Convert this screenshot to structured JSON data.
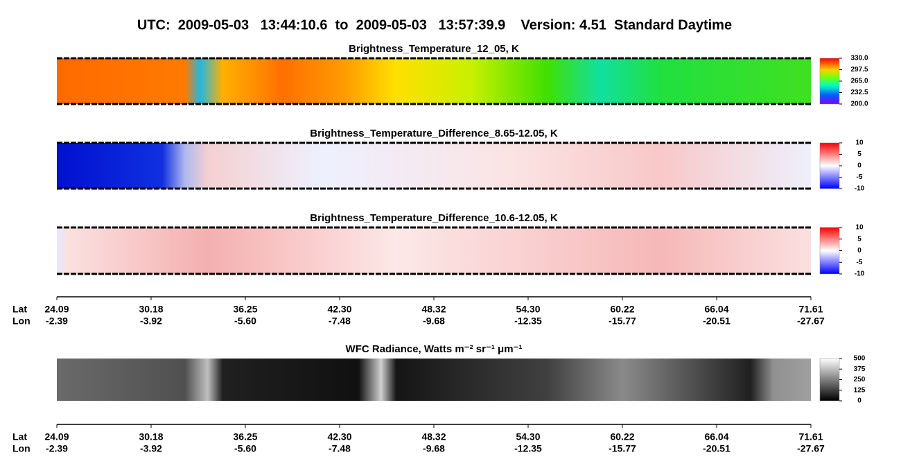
{
  "chart_data": [
    {
      "type": "image",
      "title": "UTC:  2009-05-03   13:44:10.6  to  2009-05-03   13:57:39.9    Version: 4.51  Standard Daytime"
    },
    {
      "type": "heatmap",
      "title": "Brightness_Temperature_12_05, K",
      "clim": [
        200,
        330
      ],
      "cticks": [
        {
          "value": 330,
          "label": "330.0"
        },
        {
          "value": 297.5,
          "label": "297.5"
        },
        {
          "value": 265,
          "label": "265.0"
        },
        {
          "value": 232.5,
          "label": "232.5"
        },
        {
          "value": 200,
          "label": "200.0"
        }
      ]
    },
    {
      "type": "heatmap",
      "title": "Brightness_Temperature_Difference_8.65-12.05, K",
      "clim": [
        -10,
        10
      ],
      "cticks": [
        10,
        5,
        0,
        -5,
        -10
      ]
    },
    {
      "type": "heatmap",
      "title": "Brightness_Temperature_Difference_10.6-12.05, K",
      "clim": [
        -10,
        10
      ],
      "cticks": [
        10,
        5,
        0,
        -5,
        -10
      ]
    },
    {
      "type": "heatmap",
      "title": "WFC Radiance, Watts m⁻² sr⁻¹ μm⁻¹",
      "clim": [
        0,
        500
      ],
      "cticks": [
        500,
        375,
        250,
        125,
        0
      ]
    }
  ],
  "x_axes": [
    {
      "lat_label": "Lat",
      "lon_label": "Lon",
      "lat": [
        "24.09",
        "30.18",
        "36.25",
        "42.30",
        "48.32",
        "54.30",
        "60.22",
        "66.04",
        "71.61"
      ],
      "lon": [
        "-2.39",
        "-3.92",
        "-5.60",
        "-7.48",
        "-9.68",
        "-12.35",
        "-15.77",
        "-20.51",
        "-27.67"
      ]
    },
    {
      "lat_label": "Lat",
      "lon_label": "Lon",
      "lat": [
        "24.09",
        "30.18",
        "36.25",
        "42.30",
        "48.32",
        "54.30",
        "60.22",
        "66.04",
        "71.61"
      ],
      "lon": [
        "-2.39",
        "-3.92",
        "-5.60",
        "-7.48",
        "-9.68",
        "-12.35",
        "-15.77",
        "-20.51",
        "-27.67"
      ]
    }
  ]
}
